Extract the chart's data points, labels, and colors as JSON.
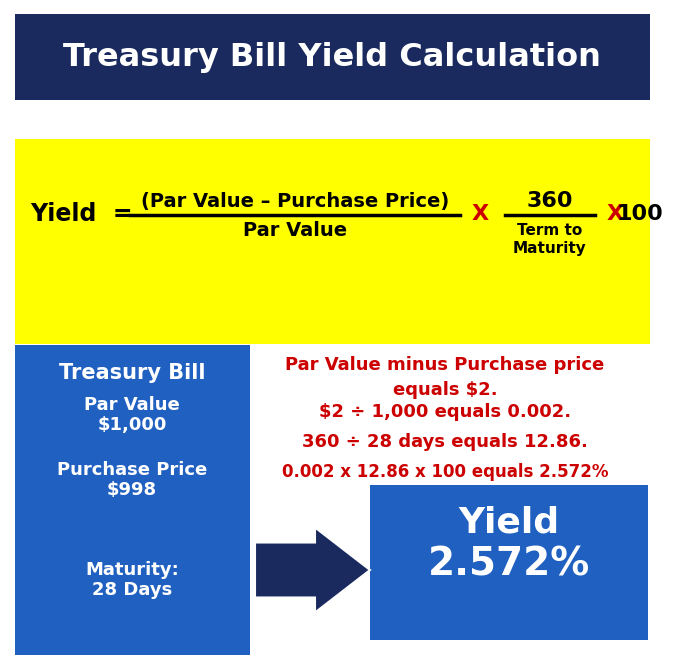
{
  "title": "Treasury Bill Yield Calculation",
  "title_bg": "#1a2a5e",
  "title_color": "#ffffff",
  "formula_bg": "#ffff00",
  "formula_yield": "Yield  =",
  "formula_numerator": "(Par Value – Purchase Price)",
  "formula_denominator": "Par Value",
  "formula_x1": "X",
  "formula_360": "360",
  "formula_term": "Term to\nMaturity",
  "formula_x2": "X  100",
  "left_box_bg": "#2060c0",
  "left_box_title": "Treasury Bill",
  "left_box_line1": "Par Value",
  "left_box_line2": "$1,000",
  "left_box_line3": "Purchase Price",
  "left_box_line4": "$998",
  "left_box_line5": "Maturity:",
  "left_box_line6": "28 Days",
  "right_box_bg": "#2060c0",
  "right_box_title": "Yield",
  "right_box_value": "2.572%",
  "step1": "Par Value minus Purchase price\nequals $2.",
  "step2": "$2 ÷ 1,000 equals 0.002.",
  "step3": "360 ÷ 28 days equals 12.86.",
  "step4": "0.002 x 12.86 x 100 equals 2.572%",
  "steps_color": "#cc0000",
  "arrow_color": "#1a2a5e",
  "white_bg": "#ffffff",
  "outer_bg": "#d0d0d0"
}
